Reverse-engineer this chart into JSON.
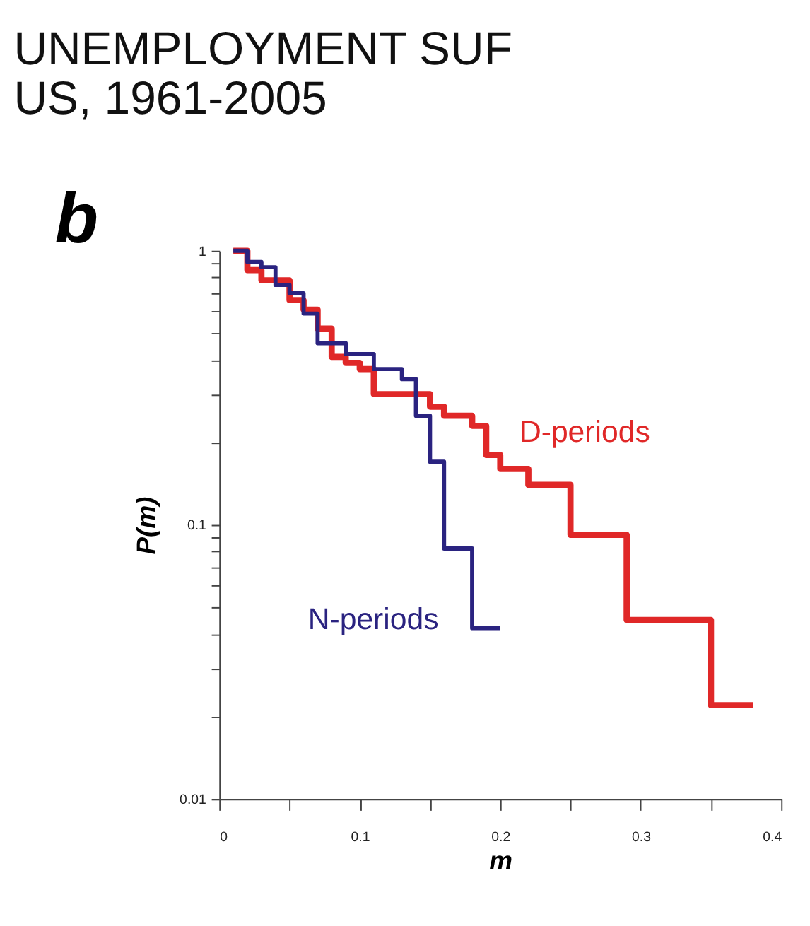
{
  "chart_data": {
    "type": "step",
    "title": "UNEMPLOYMENT SUF",
    "subtitle": "US, 1961-2005",
    "xlabel": "m",
    "ylabel": "P(m)",
    "annotations": [
      "b"
    ],
    "series": [
      {
        "name": "D-periods",
        "color": "#e02828",
        "x": [
          0.01,
          0.02,
          0.03,
          0.05,
          0.06,
          0.07,
          0.08,
          0.09,
          0.1,
          0.11,
          0.15,
          0.16,
          0.18,
          0.19,
          0.2,
          0.22,
          0.25,
          0.29,
          0.35,
          0.38
        ],
        "values": [
          1.0,
          0.85,
          0.78,
          0.66,
          0.61,
          0.52,
          0.41,
          0.39,
          0.37,
          0.3,
          0.27,
          0.25,
          0.23,
          0.18,
          0.16,
          0.14,
          0.092,
          0.045,
          0.022,
          0.022
        ]
      },
      {
        "name": "N-periods",
        "color": "#2a2380",
        "x": [
          0.01,
          0.02,
          0.03,
          0.04,
          0.05,
          0.06,
          0.07,
          0.09,
          0.11,
          0.13,
          0.14,
          0.15,
          0.16,
          0.18,
          0.2
        ],
        "values": [
          1.0,
          0.91,
          0.87,
          0.75,
          0.7,
          0.59,
          0.46,
          0.42,
          0.37,
          0.34,
          0.25,
          0.17,
          0.082,
          0.042,
          0.042
        ]
      }
    ],
    "log": "y",
    "xlim": [
      0,
      0.4
    ],
    "ylim": [
      0.01,
      1
    ],
    "xticks": [
      0,
      {
        "value": 0.05,
        "label": null
      },
      0.1,
      {
        "value": 0.15,
        "label": null
      },
      0.2,
      {
        "value": 0.25,
        "label": null
      },
      0.3,
      {
        "value": 0.35,
        "label": null
      },
      0.4
    ],
    "yticks": [
      0.01,
      {
        "value": 0.02,
        "label": null
      },
      {
        "value": 0.03,
        "label": null
      },
      {
        "value": 0.04,
        "label": null
      },
      {
        "value": 0.05,
        "label": null
      },
      {
        "value": 0.06,
        "label": null
      },
      {
        "value": 0.07,
        "label": null
      },
      {
        "value": 0.08,
        "label": null
      },
      {
        "value": 0.09,
        "label": null
      },
      0.1,
      {
        "value": 0.2,
        "label": null
      },
      {
        "value": 0.3,
        "label": null
      },
      {
        "value": 0.4,
        "label": null
      },
      {
        "value": 0.5,
        "label": null
      },
      {
        "value": 0.6,
        "label": null
      },
      {
        "value": 0.7,
        "label": null
      },
      {
        "value": 0.8,
        "label": null
      },
      {
        "value": 0.9,
        "label": null
      },
      1
    ],
    "grid": false,
    "legend": false,
    "marker": "none",
    "line_style": "solid"
  }
}
